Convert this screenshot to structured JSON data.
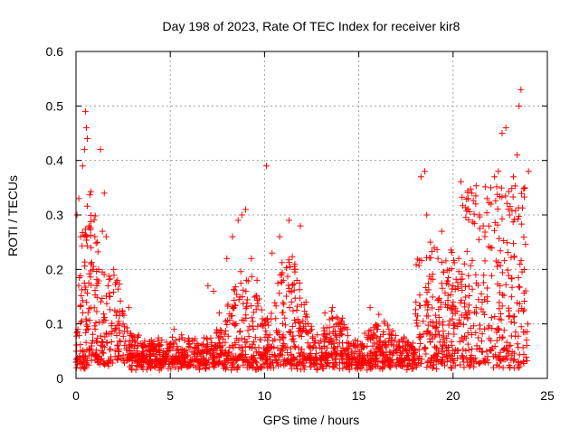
{
  "chart_data": {
    "type": "scatter",
    "title": "Day 198 of 2023, Rate Of TEC Index for receiver kir8",
    "xlabel": "GPS time / hours",
    "ylabel": "ROTI / TECUs",
    "xlim": [
      0,
      25
    ],
    "ylim": [
      0,
      0.6
    ],
    "x_ticks": [
      0,
      5,
      10,
      15,
      20,
      25
    ],
    "x_tick_labels": [
      "0",
      "5",
      "10",
      "15",
      "20",
      "25"
    ],
    "y_ticks": [
      0,
      0.1,
      0.2,
      0.3,
      0.4,
      0.5,
      0.6
    ],
    "y_tick_labels": [
      "0",
      "0.1",
      "0.2",
      "0.3",
      "0.4",
      "0.5",
      "0.6"
    ],
    "grid": true,
    "legend": "none",
    "marker": "+",
    "marker_color": "#ff0000",
    "sample_points": {
      "x": [
        0.05,
        0.15,
        0.25,
        0.35,
        0.45,
        0.5,
        0.55,
        0.6,
        0.7,
        0.8,
        0.9,
        1.0,
        1.1,
        1.2,
        1.3,
        1.4,
        1.5,
        1.6,
        1.7,
        1.8,
        2.0,
        2.2,
        2.5,
        2.8,
        3.0,
        3.3,
        3.6,
        4.0,
        4.4,
        4.8,
        5.2,
        5.6,
        6.0,
        6.5,
        7.0,
        7.3,
        7.6,
        8.0,
        8.3,
        8.6,
        8.8,
        9.0,
        9.3,
        9.6,
        9.9,
        10.1,
        10.4,
        10.8,
        11.0,
        11.3,
        11.6,
        11.9,
        12.2,
        12.5,
        12.8,
        13.2,
        13.6,
        14.0,
        14.4,
        14.8,
        15.2,
        15.6,
        16.0,
        16.4,
        16.8,
        17.2,
        17.6,
        18.0,
        18.3,
        18.5,
        18.6,
        18.8,
        19.0,
        19.2,
        19.4,
        19.7,
        20.0,
        20.3,
        20.6,
        20.8,
        21.0,
        21.2,
        21.4,
        21.6,
        21.8,
        22.0,
        22.2,
        22.4,
        22.6,
        22.8,
        23.0,
        23.2,
        23.4,
        23.5,
        23.6,
        23.8,
        24.0
      ],
      "y": [
        0.3,
        0.33,
        0.26,
        0.39,
        0.42,
        0.49,
        0.46,
        0.44,
        0.28,
        0.24,
        0.2,
        0.26,
        0.17,
        0.2,
        0.42,
        0.27,
        0.34,
        0.26,
        0.17,
        0.15,
        0.2,
        0.18,
        0.1,
        0.13,
        0.07,
        0.06,
        0.06,
        0.07,
        0.06,
        0.05,
        0.09,
        0.08,
        0.07,
        0.06,
        0.17,
        0.16,
        0.12,
        0.22,
        0.26,
        0.29,
        0.3,
        0.31,
        0.22,
        0.18,
        0.1,
        0.39,
        0.23,
        0.26,
        0.18,
        0.29,
        0.2,
        0.28,
        0.14,
        0.09,
        0.08,
        0.12,
        0.13,
        0.1,
        0.09,
        0.07,
        0.06,
        0.13,
        0.09,
        0.06,
        0.07,
        0.05,
        0.06,
        0.05,
        0.37,
        0.38,
        0.3,
        0.25,
        0.24,
        0.22,
        0.27,
        0.13,
        0.17,
        0.22,
        0.21,
        0.33,
        0.34,
        0.32,
        0.3,
        0.28,
        0.33,
        0.35,
        0.37,
        0.38,
        0.45,
        0.46,
        0.3,
        0.37,
        0.41,
        0.5,
        0.53,
        0.35,
        0.38
      ]
    }
  }
}
